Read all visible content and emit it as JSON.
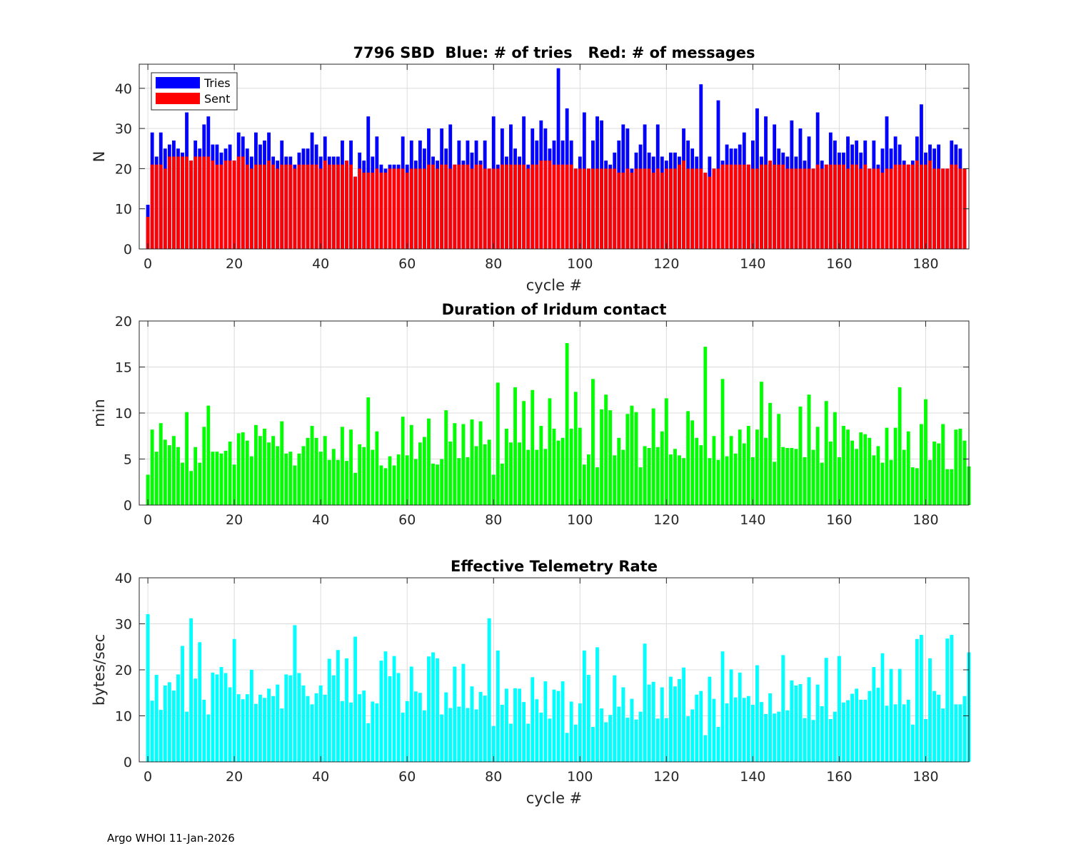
{
  "footer": "Argo WHOI 11-Jan-2026",
  "colors": {
    "tries": "#0000ff",
    "sent": "#ff0000",
    "duration": "#00ff00",
    "rate": "#00ffff",
    "grid": "#dcdcdc",
    "axis": "#262626"
  },
  "chart_data": [
    {
      "type": "bar",
      "title": "7796 SBD  Blue: # of tries   Red: # of messages",
      "xlabel": "cycle #",
      "ylabel": "N",
      "xlim": [
        -2,
        190
      ],
      "ylim": [
        0,
        46
      ],
      "xticks": [
        0,
        20,
        40,
        60,
        80,
        100,
        120,
        140,
        160,
        180
      ],
      "yticks": [
        0,
        10,
        20,
        30,
        40
      ],
      "legend": {
        "position": "top-left",
        "entries": [
          "Tries",
          "Sent"
        ]
      },
      "grid": true,
      "x_start": 0,
      "series": [
        {
          "name": "Tries",
          "values": [
            11,
            29,
            23,
            29,
            25,
            26,
            27,
            25,
            24,
            34,
            22,
            27,
            25,
            31,
            33,
            26,
            26,
            24,
            25,
            26,
            22,
            29,
            28,
            25,
            23,
            29,
            26,
            27,
            29,
            23,
            22,
            27,
            23,
            23,
            21,
            24,
            25,
            25,
            29,
            26,
            23,
            28,
            23,
            23,
            23,
            27,
            22,
            27,
            18,
            24,
            22,
            33,
            23,
            28,
            21,
            20,
            21,
            21,
            21,
            28,
            21,
            27,
            22,
            27,
            25,
            30,
            23,
            22,
            30,
            25,
            31,
            21,
            27,
            22,
            27,
            24,
            27,
            22,
            27,
            20,
            33,
            21,
            30,
            23,
            31,
            25,
            23,
            33,
            21,
            30,
            27,
            32,
            30,
            25,
            27,
            45,
            27,
            35,
            27,
            20,
            23,
            34,
            20,
            27,
            33,
            32,
            22,
            21,
            24,
            27,
            31,
            30,
            20,
            24,
            26,
            31,
            24,
            23,
            31,
            23,
            22,
            24,
            24,
            23,
            30,
            27,
            25,
            23,
            41,
            19,
            23,
            20,
            37,
            22,
            26,
            25,
            25,
            26,
            29,
            21,
            27,
            35,
            23,
            33,
            21,
            31,
            25,
            24,
            23,
            32,
            23,
            30,
            22,
            28,
            20,
            34,
            22,
            21,
            29,
            27,
            24,
            24,
            28,
            26,
            27,
            24,
            27,
            20,
            27,
            21,
            25,
            33,
            25,
            28,
            26,
            22,
            21,
            22,
            28,
            36,
            24,
            26,
            25,
            26,
            20,
            20,
            27,
            26,
            25,
            20
          ],
          "color": "#0000ff"
        },
        {
          "name": "Sent",
          "values": [
            8,
            21,
            21,
            21,
            20,
            23,
            23,
            23,
            23,
            23,
            22,
            23,
            23,
            23,
            23,
            22,
            21,
            21,
            22,
            22,
            22,
            23,
            23,
            21,
            20,
            21,
            21,
            21,
            22,
            21,
            20,
            21,
            21,
            21,
            20,
            21,
            21,
            21,
            21,
            21,
            20,
            22,
            21,
            21,
            21,
            21,
            22,
            21,
            18,
            20,
            19,
            19,
            19,
            20,
            19,
            19,
            20,
            20,
            20,
            20,
            19,
            20,
            20,
            20,
            20,
            21,
            21,
            20,
            21,
            21,
            20,
            21,
            21,
            21,
            21,
            20,
            21,
            21,
            20,
            20,
            20,
            20,
            21,
            21,
            21,
            21,
            21,
            21,
            20,
            21,
            21,
            22,
            22,
            22,
            21,
            21,
            21,
            21,
            21,
            20,
            20,
            20,
            20,
            20,
            20,
            20,
            20,
            20,
            20,
            19,
            19,
            20,
            19,
            20,
            20,
            20,
            20,
            19,
            20,
            19,
            20,
            20,
            20,
            21,
            22,
            20,
            20,
            20,
            20,
            19,
            18,
            20,
            20,
            21,
            21,
            21,
            21,
            21,
            21,
            21,
            20,
            20,
            21,
            21,
            22,
            21,
            21,
            21,
            20,
            20,
            20,
            20,
            20,
            20,
            20,
            21,
            20,
            21,
            21,
            21,
            21,
            21,
            20,
            21,
            21,
            20,
            21,
            20,
            20,
            20,
            19,
            20,
            20,
            21,
            21,
            21,
            21,
            21,
            22,
            21,
            21,
            22,
            20,
            20,
            20,
            20,
            21,
            21,
            20,
            20
          ],
          "color": "#ff0000"
        }
      ]
    },
    {
      "type": "bar",
      "title": "Duration of Iridum contact",
      "xlabel": "",
      "ylabel": "min",
      "xlim": [
        -2,
        190
      ],
      "ylim": [
        0,
        20
      ],
      "xticks": [
        0,
        20,
        40,
        60,
        80,
        100,
        120,
        140,
        160,
        180
      ],
      "yticks": [
        0,
        5,
        10,
        15,
        20
      ],
      "grid": true,
      "x_start": 0,
      "series": [
        {
          "name": "Duration",
          "values": [
            3.3,
            8.2,
            5.8,
            8.9,
            7.1,
            6.5,
            7.5,
            6.3,
            4.6,
            10.1,
            3.7,
            6.3,
            4.6,
            8.5,
            10.8,
            5.8,
            5.8,
            5.6,
            5.9,
            6.9,
            4.4,
            7.8,
            7.9,
            7.0,
            5.3,
            8.7,
            7.5,
            8.3,
            6.8,
            7.5,
            6.4,
            9.1,
            5.6,
            5.8,
            4.3,
            5.6,
            6.4,
            7.3,
            8.6,
            7.3,
            5.8,
            7.5,
            4.9,
            6.1,
            4.9,
            8.5,
            4.8,
            8.2,
            3.5,
            6.6,
            6.3,
            11.7,
            6.0,
            8.0,
            4.3,
            4.0,
            5.3,
            4.3,
            5.5,
            9.6,
            5.4,
            8.7,
            5.0,
            6.8,
            7.4,
            9.4,
            4.5,
            4.4,
            5.0,
            10.3,
            6.9,
            8.9,
            5.1,
            8.8,
            5.2,
            9.3,
            6.4,
            9.1,
            6.6,
            7.1,
            3.3,
            13.3,
            4.5,
            8.3,
            6.8,
            12.8,
            6.8,
            11.3,
            6.0,
            12.5,
            6.0,
            8.6,
            6.1,
            11.6,
            8.3,
            7.0,
            7.3,
            17.6,
            8.3,
            12.3,
            8.4,
            4.4,
            5.5,
            13.7,
            4.1,
            10.4,
            12.0,
            10.3,
            5.4,
            7.3,
            6.0,
            9.9,
            10.8,
            10.1,
            4.1,
            6.4,
            6.2,
            10.5,
            6.3,
            8.0,
            11.6,
            5.5,
            6.1,
            5.4,
            5.1,
            10.2,
            9.2,
            7.3,
            6.5,
            17.2,
            5.1,
            7.5,
            4.9,
            13.7,
            5.3,
            7.5,
            5.6,
            8.2,
            6.7,
            8.6,
            5.2,
            8.2,
            13.4,
            7.3,
            11.1,
            4.7,
            9.9,
            6.3,
            6.2,
            6.2,
            6.1,
            10.7,
            5.2,
            12.0,
            6.0,
            8.5,
            4.6,
            11.3,
            6.9,
            10.1,
            5.2,
            8.6,
            8.2,
            7.0,
            6.1,
            7.9,
            7.7,
            7.3,
            5.4,
            6.4,
            4.6,
            8.4,
            4.9,
            8.4,
            12.8,
            6.0,
            8.0,
            4.1,
            4.0,
            8.8,
            11.5,
            4.9,
            6.9,
            6.7,
            8.8,
            3.9,
            3.9,
            8.2,
            8.3,
            7.0,
            4.2
          ]
        }
      ]
    },
    {
      "type": "bar",
      "title": "Effective Telemetry Rate",
      "xlabel": "cycle #",
      "ylabel": "bytes/sec",
      "xlim": [
        -2,
        190
      ],
      "ylim": [
        0,
        40
      ],
      "xticks": [
        0,
        20,
        40,
        60,
        80,
        100,
        120,
        140,
        160,
        180
      ],
      "yticks": [
        0,
        10,
        20,
        30,
        40
      ],
      "grid": true,
      "x_start": 0,
      "series": [
        {
          "name": "Rate",
          "values": [
            32.1,
            13.3,
            18.9,
            11.3,
            16.6,
            17.3,
            15.5,
            19.0,
            25.2,
            10.9,
            31.2,
            18.1,
            26.0,
            13.5,
            10.3,
            19.4,
            19.0,
            20.6,
            19.3,
            16.2,
            26.7,
            14.7,
            13.6,
            14.7,
            20.0,
            12.6,
            14.6,
            13.9,
            15.9,
            14.3,
            16.8,
            11.6,
            19.0,
            18.8,
            29.7,
            19.3,
            16.6,
            14.3,
            12.5,
            14.9,
            16.6,
            14.6,
            22.4,
            18.8,
            24.3,
            13.2,
            22.5,
            12.9,
            27.2,
            14.7,
            15.5,
            8.4,
            13.1,
            12.7,
            22.0,
            24.0,
            18.6,
            23.0,
            19.3,
            10.7,
            13.2,
            20.7,
            15.3,
            15.0,
            11.2,
            22.9,
            23.8,
            22.5,
            10.3,
            15.1,
            11.7,
            20.7,
            12.0,
            21.3,
            11.7,
            16.4,
            11.4,
            15.2,
            14.4,
            31.2,
            7.8,
            24.2,
            12.4,
            15.9,
            8.3,
            16.0,
            15.9,
            13.0,
            8.3,
            18.4,
            13.6,
            10.7,
            17.5,
            9.4,
            15.7,
            15.4,
            17.5,
            6.3,
            13.1,
            8.1,
            12.7,
            24.2,
            18.9,
            7.6,
            24.9,
            11.6,
            8.6,
            10.2,
            18.8,
            12.0,
            16.2,
            9.6,
            13.7,
            9.2,
            10.9,
            25.7,
            16.8,
            17.4,
            9.4,
            16.2,
            9.5,
            18.5,
            16.4,
            18.0,
            20.5,
            9.9,
            11.4,
            14.6,
            15.4,
            5.8,
            18.5,
            13.7,
            7.6,
            24.0,
            12.7,
            20.1,
            14.0,
            19.4,
            13.9,
            14.3,
            12.4,
            21.0,
            13.0,
            10.4,
            14.9,
            10.5,
            10.9,
            23.2,
            11.2,
            17.7,
            16.6,
            16.9,
            9.5,
            18.4,
            9.1,
            16.8,
            12.1,
            22.6,
            9.3,
            10.9,
            23.0,
            12.9,
            13.4,
            14.8,
            15.9,
            13.5,
            13.5,
            15.4,
            20.6,
            16.1,
            23.6,
            12.2,
            20.2,
            12.5,
            20.2,
            12.5,
            13.5,
            8.1,
            26.7,
            27.6,
            9.3,
            22.5,
            15.4,
            14.6,
            11.6,
            26.8,
            27.6,
            12.5,
            12.5,
            14.3,
            23.8
          ]
        }
      ]
    }
  ]
}
